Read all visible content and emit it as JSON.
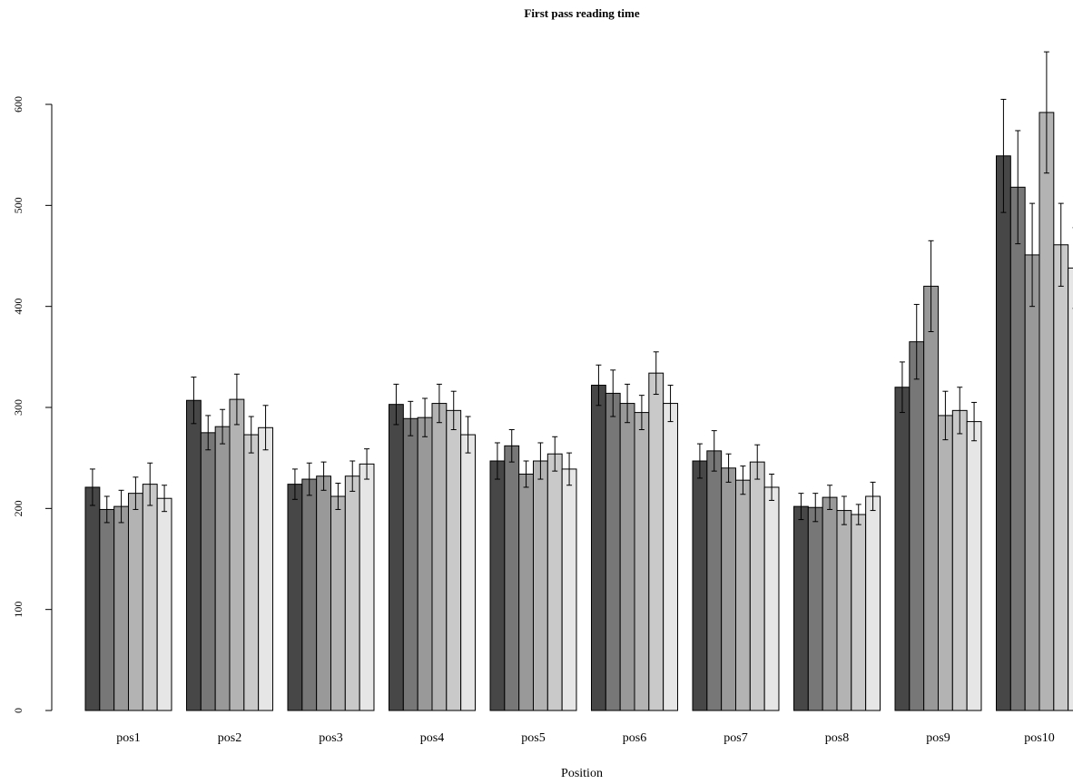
{
  "chart_data": {
    "type": "bar",
    "title": "First pass reading time",
    "xlabel": "Position",
    "ylabel": "",
    "ylim": [
      0,
      660
    ],
    "yticks": [
      0,
      100,
      200,
      300,
      400,
      500,
      600
    ],
    "grid": false,
    "legend": "none",
    "error_bars": true,
    "categories": [
      "pos1",
      "pos2",
      "pos3",
      "pos4",
      "pos5",
      "pos6",
      "pos7",
      "pos8",
      "pos9",
      "pos10"
    ],
    "series": [
      {
        "color": "#474747",
        "values": [
          221,
          307,
          224,
          303,
          247,
          322,
          247,
          202,
          320,
          549
        ],
        "errors": [
          18,
          23,
          15,
          20,
          18,
          20,
          17,
          13,
          25,
          56
        ]
      },
      {
        "color": "#777777",
        "values": [
          199,
          275,
          229,
          289,
          262,
          314,
          257,
          201,
          365,
          518
        ],
        "errors": [
          13,
          17,
          16,
          17,
          16,
          23,
          20,
          14,
          37,
          56
        ]
      },
      {
        "color": "#999999",
        "values": [
          202,
          281,
          232,
          290,
          234,
          304,
          240,
          211,
          420,
          451
        ],
        "errors": [
          16,
          17,
          14,
          19,
          13,
          19,
          14,
          12,
          45,
          51
        ]
      },
      {
        "color": "#b3b3b3",
        "values": [
          215,
          308,
          212,
          304,
          247,
          295,
          228,
          198,
          292,
          592
        ],
        "errors": [
          16,
          25,
          13,
          19,
          18,
          17,
          14,
          14,
          24,
          60
        ]
      },
      {
        "color": "#c9c9c9",
        "values": [
          224,
          273,
          232,
          297,
          254,
          334,
          246,
          194,
          297,
          461
        ],
        "errors": [
          21,
          18,
          15,
          19,
          17,
          21,
          17,
          10,
          23,
          41
        ]
      },
      {
        "color": "#e6e6e6",
        "values": [
          210,
          280,
          244,
          273,
          239,
          304,
          221,
          212,
          286,
          438
        ],
        "errors": [
          13,
          22,
          15,
          18,
          16,
          18,
          13,
          14,
          19,
          40
        ]
      }
    ]
  }
}
